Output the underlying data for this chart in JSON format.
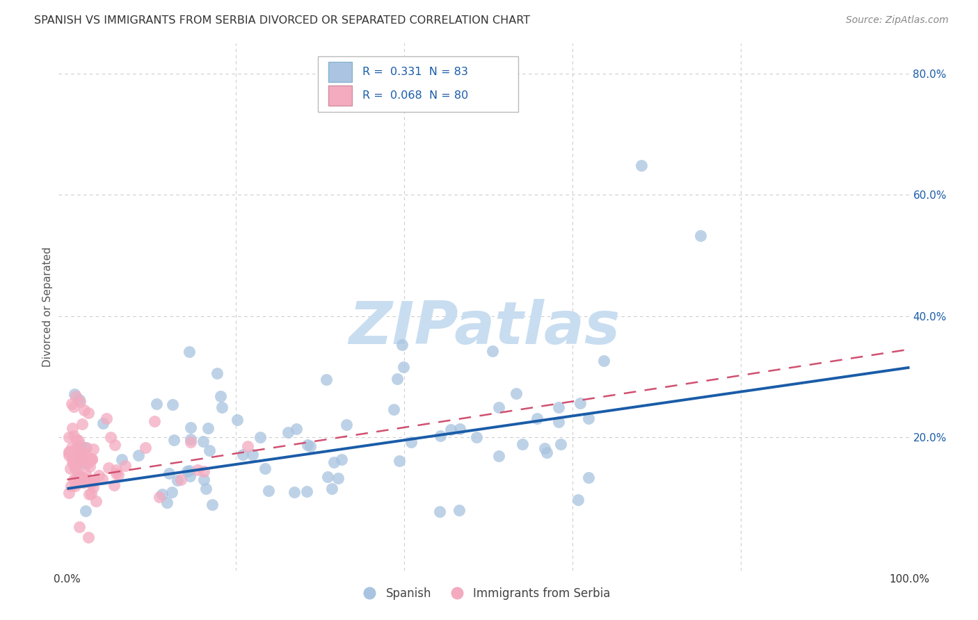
{
  "title": "SPANISH VS IMMIGRANTS FROM SERBIA DIVORCED OR SEPARATED CORRELATION CHART",
  "source": "Source: ZipAtlas.com",
  "ylabel": "Divorced or Separated",
  "xlabel": "",
  "xlim": [
    -0.01,
    1.0
  ],
  "ylim": [
    -0.02,
    0.85
  ],
  "y_ticks_right": [
    0.2,
    0.4,
    0.6,
    0.8
  ],
  "y_tick_labels_right": [
    "20.0%",
    "40.0%",
    "60.0%",
    "80.0%"
  ],
  "legend_entry1": "R =  0.331  N = 83",
  "legend_entry2": "R =  0.068  N = 80",
  "legend_color1": "#aac4e2",
  "legend_color2": "#f4aabf",
  "grid_color": "#c8c8c8",
  "scatter_blue_color": "#a8c4e0",
  "scatter_pink_color": "#f4aabf",
  "line_blue_color": "#1a5ca8",
  "line_pink_color": "#d05070",
  "watermark": "ZIPatlas",
  "watermark_color": "#c8ddf0",
  "background_color": "#ffffff",
  "title_color": "#333333",
  "source_color": "#888888",
  "tick_color": "#333333",
  "right_tick_color": "#1a5ca8"
}
